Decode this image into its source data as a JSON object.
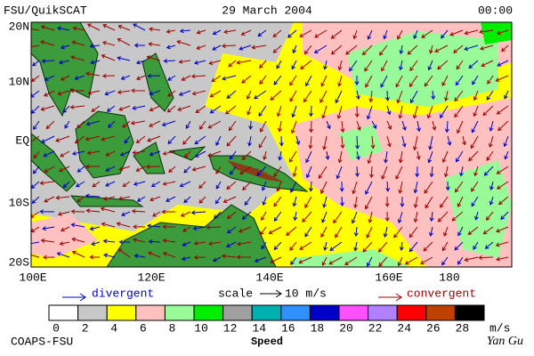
{
  "header": {
    "left": "FSU/QuikSCAT",
    "center": "29 March 2004",
    "right": "00:00"
  },
  "map": {
    "lat_labels": [
      "20N",
      "10N",
      "EQ",
      "10S",
      "20S"
    ],
    "lon_labels": [
      "100E",
      "120E",
      "140E",
      "160E",
      "180"
    ]
  },
  "legend": {
    "divergent": "divergent",
    "scale": "scale",
    "scale_value": "10 m/s",
    "convergent": "convergent"
  },
  "colorbar": {
    "ticks": [
      0,
      2,
      4,
      6,
      8,
      10,
      12,
      14,
      16,
      18,
      20,
      22,
      24,
      26,
      28
    ],
    "colors": [
      "#ffffff",
      "#c8c8c8",
      "#ffff00",
      "#ffc0c0",
      "#98fb98",
      "#00ee00",
      "#a0a0a0",
      "#00b0b0",
      "#3090ff",
      "#0000c8",
      "#ff50ff",
      "#b080ff",
      "#ff0000",
      "#c04000",
      "#000000"
    ],
    "unit": "m/s",
    "title": "Speed"
  },
  "footer": {
    "left": "COAPS-FSU",
    "right": "Yan Gu"
  }
}
